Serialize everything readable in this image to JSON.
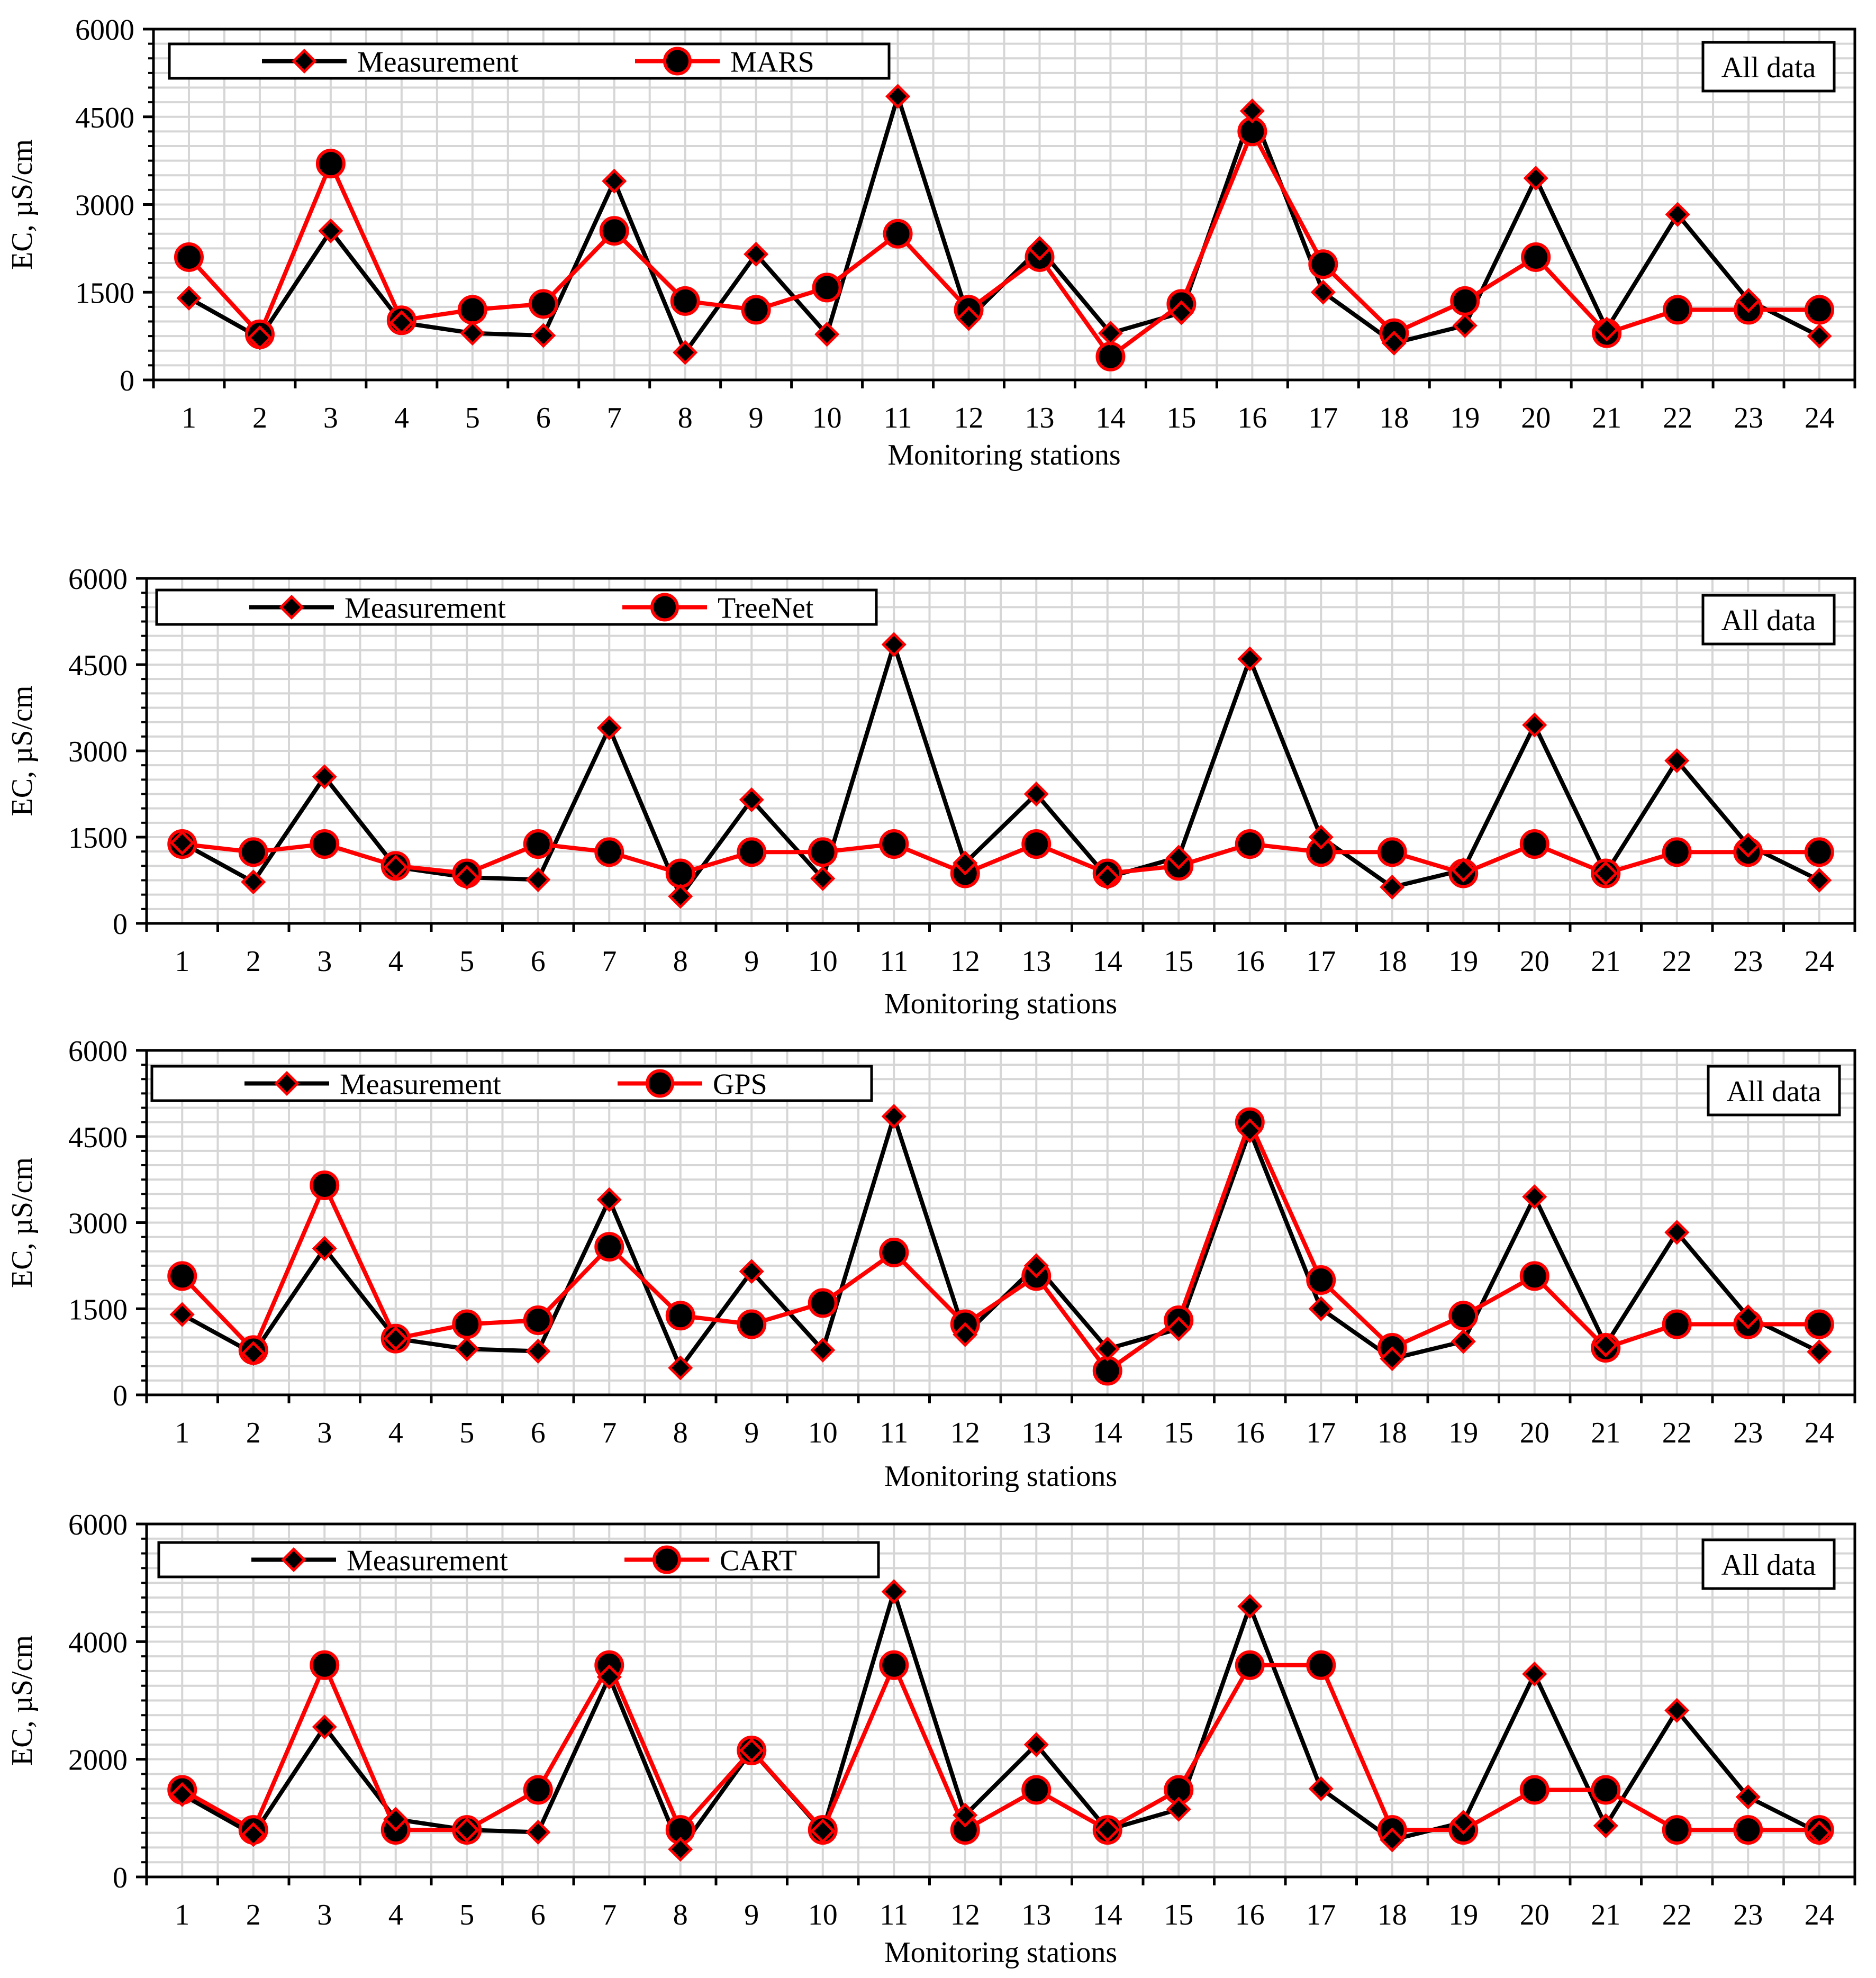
{
  "chart_data": [
    {
      "type": "line",
      "title": "",
      "xlabel": "Monitoring stations",
      "ylabel": "EC, µS/cm",
      "ylim": [
        0,
        6000
      ],
      "yticks": [
        0,
        1500,
        3000,
        4500,
        6000
      ],
      "categories": [
        "1",
        "2",
        "3",
        "4",
        "5",
        "6",
        "7",
        "8",
        "9",
        "10",
        "11",
        "12",
        "13",
        "14",
        "15",
        "16",
        "17",
        "18",
        "19",
        "20",
        "21",
        "22",
        "23",
        "24"
      ],
      "annotation": "All data",
      "legend_position": "top-left",
      "series": [
        {
          "name": "Measurement",
          "color": "#000000",
          "marker": "diamond",
          "values": [
            1400,
            720,
            2550,
            980,
            800,
            760,
            3400,
            470,
            2150,
            780,
            4850,
            1050,
            2250,
            800,
            1150,
            4600,
            1500,
            630,
            930,
            3450,
            870,
            2830,
            1360,
            750
          ]
        },
        {
          "name": "MARS",
          "color": "#ff0000",
          "marker": "circle",
          "values": [
            2100,
            780,
            3700,
            1020,
            1200,
            1300,
            2550,
            1350,
            1200,
            1580,
            2500,
            1200,
            2100,
            400,
            1300,
            4250,
            1980,
            800,
            1350,
            2100,
            800,
            1200,
            1200,
            1200
          ]
        }
      ]
    },
    {
      "type": "line",
      "title": "",
      "xlabel": "Monitoring stations",
      "ylabel": "EC, µS/cm",
      "ylim": [
        0,
        6000
      ],
      "yticks": [
        0,
        1500,
        3000,
        4500,
        6000
      ],
      "categories": [
        "1",
        "2",
        "3",
        "4",
        "5",
        "6",
        "7",
        "8",
        "9",
        "10",
        "11",
        "12",
        "13",
        "14",
        "15",
        "16",
        "17",
        "18",
        "19",
        "20",
        "21",
        "22",
        "23",
        "24"
      ],
      "annotation": "All data",
      "legend_position": "top-left",
      "series": [
        {
          "name": "Measurement",
          "color": "#000000",
          "marker": "diamond",
          "values": [
            1400,
            720,
            2550,
            980,
            800,
            760,
            3400,
            470,
            2150,
            780,
            4850,
            1050,
            2250,
            800,
            1150,
            4600,
            1500,
            630,
            930,
            3450,
            870,
            2830,
            1360,
            750
          ]
        },
        {
          "name": "TreeNet",
          "color": "#ff0000",
          "marker": "circle",
          "values": [
            1380,
            1240,
            1380,
            1000,
            870,
            1380,
            1240,
            870,
            1240,
            1240,
            1380,
            870,
            1380,
            870,
            1000,
            1380,
            1240,
            1240,
            870,
            1380,
            870,
            1240,
            1240,
            1240
          ]
        }
      ]
    },
    {
      "type": "line",
      "title": "",
      "xlabel": "Monitoring stations",
      "ylabel": "EC, µS/cm",
      "ylim": [
        0,
        6000
      ],
      "yticks": [
        0,
        1500,
        3000,
        4500,
        6000
      ],
      "categories": [
        "1",
        "2",
        "3",
        "4",
        "5",
        "6",
        "7",
        "8",
        "9",
        "10",
        "11",
        "12",
        "13",
        "14",
        "15",
        "16",
        "17",
        "18",
        "19",
        "20",
        "21",
        "22",
        "23",
        "24"
      ],
      "annotation": "All data",
      "legend_position": "top-left",
      "series": [
        {
          "name": "Measurement",
          "color": "#000000",
          "marker": "diamond",
          "values": [
            1400,
            720,
            2550,
            980,
            800,
            760,
            3400,
            470,
            2150,
            780,
            4850,
            1050,
            2250,
            800,
            1150,
            4600,
            1500,
            630,
            930,
            3450,
            870,
            2830,
            1360,
            750
          ]
        },
        {
          "name": "GPS",
          "color": "#ff0000",
          "marker": "circle",
          "values": [
            2070,
            780,
            3650,
            980,
            1230,
            1300,
            2580,
            1380,
            1230,
            1600,
            2480,
            1230,
            2070,
            420,
            1300,
            4750,
            2000,
            820,
            1380,
            2070,
            820,
            1230,
            1230,
            1230
          ]
        }
      ]
    },
    {
      "type": "line",
      "title": "",
      "xlabel": "Monitoring stations",
      "ylabel": "EC, µS/cm",
      "ylim": [
        0,
        6000
      ],
      "yticks": [
        0,
        2000,
        4000,
        6000
      ],
      "categories": [
        "1",
        "2",
        "3",
        "4",
        "5",
        "6",
        "7",
        "8",
        "9",
        "10",
        "11",
        "12",
        "13",
        "14",
        "15",
        "16",
        "17",
        "18",
        "19",
        "20",
        "21",
        "22",
        "23",
        "24"
      ],
      "annotation": "All data",
      "legend_position": "top-left",
      "series": [
        {
          "name": "Measurement",
          "color": "#000000",
          "marker": "diamond",
          "values": [
            1400,
            720,
            2550,
            980,
            800,
            760,
            3400,
            470,
            2150,
            780,
            4850,
            1050,
            2250,
            800,
            1150,
            4600,
            1500,
            630,
            930,
            3450,
            870,
            2830,
            1360,
            750
          ]
        },
        {
          "name": "CART",
          "color": "#ff0000",
          "marker": "circle",
          "values": [
            1480,
            800,
            3600,
            800,
            800,
            1480,
            3600,
            800,
            2150,
            800,
            3600,
            800,
            1480,
            800,
            1480,
            3600,
            3600,
            800,
            800,
            1480,
            1480,
            800,
            800,
            800
          ]
        }
      ]
    }
  ]
}
